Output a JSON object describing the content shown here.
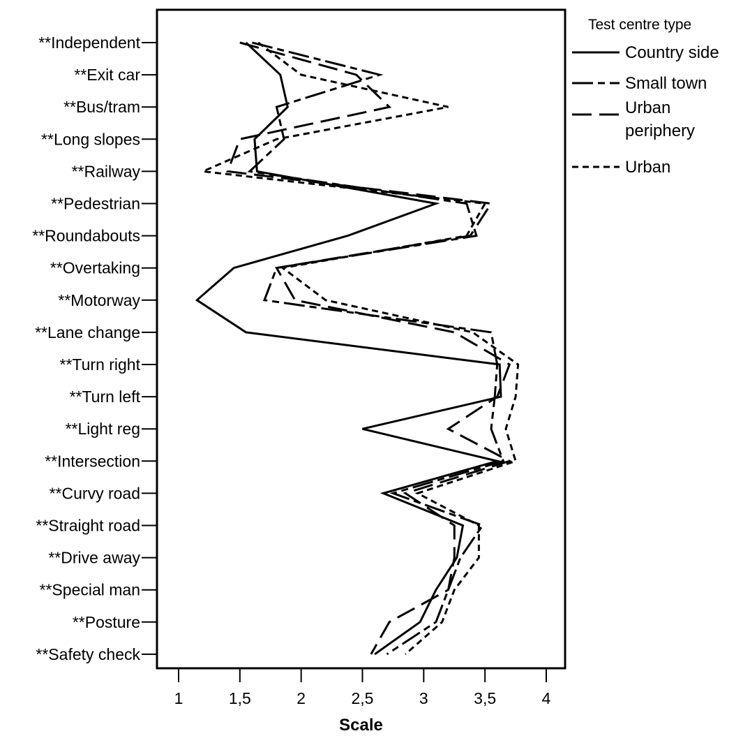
{
  "chart_data": {
    "type": "line",
    "orientation": "horizontal",
    "xlabel": "Scale",
    "xlim": [
      0.85,
      4.15
    ],
    "x_ticks": [
      {
        "value": 1,
        "label": "1"
      },
      {
        "value": 1.5,
        "label": "1,5"
      },
      {
        "value": 2,
        "label": "2"
      },
      {
        "value": 2.5,
        "label": "2,5"
      },
      {
        "value": 3,
        "label": "3"
      },
      {
        "value": 3.5,
        "label": "3,5"
      },
      {
        "value": 4,
        "label": "4"
      }
    ],
    "categories": [
      "**Independent",
      "**Exit car",
      "**Bus/tram",
      "**Long slopes",
      "**Railway",
      "**Pedestrian",
      "**Roundabouts",
      "**Overtaking",
      "**Motorway",
      "**Lane change",
      "**Turn right",
      "**Turn left",
      "**Light reg",
      "**Intersection",
      "**Curvy road",
      "**Straight road",
      "**Drive away",
      "**Special man",
      "**Posture",
      "**Safety check"
    ],
    "series": [
      {
        "name": "Country side",
        "dash": "solid",
        "values": [
          1.55,
          1.83,
          1.89,
          1.62,
          1.64,
          3.1,
          2.38,
          1.45,
          1.15,
          1.55,
          3.62,
          3.63,
          2.5,
          3.6,
          2.67,
          3.32,
          3.27,
          3.1,
          2.97,
          2.6
        ]
      },
      {
        "name": "Small town",
        "dash": "long-short",
        "values": [
          1.6,
          2.64,
          1.8,
          1.86,
          1.58,
          3.35,
          3.43,
          1.8,
          1.7,
          3.55,
          3.6,
          3.58,
          3.55,
          3.65,
          2.75,
          3.48,
          3.3,
          3.2,
          3.1,
          2.7
        ]
      },
      {
        "name": "Urban periphery",
        "dash": "long",
        "values": [
          1.5,
          2.45,
          2.72,
          1.5,
          1.4,
          3.55,
          3.38,
          1.8,
          1.95,
          3.25,
          3.7,
          3.6,
          3.2,
          3.7,
          2.85,
          3.25,
          3.25,
          3.2,
          2.72,
          2.57
        ]
      },
      {
        "name": "Urban",
        "dash": "short",
        "values": [
          1.65,
          2.0,
          3.2,
          1.8,
          1.2,
          3.5,
          3.35,
          1.85,
          2.2,
          3.4,
          3.77,
          3.75,
          3.67,
          3.75,
          2.95,
          3.45,
          3.45,
          3.25,
          3.15,
          2.85
        ]
      }
    ],
    "legend": {
      "title": "Test centre type",
      "position": "right"
    },
    "grid": false
  },
  "legend_labels": [
    [
      "Country side"
    ],
    [
      "Small town"
    ],
    [
      "Urban",
      "periphery"
    ],
    [
      "Urban"
    ]
  ]
}
